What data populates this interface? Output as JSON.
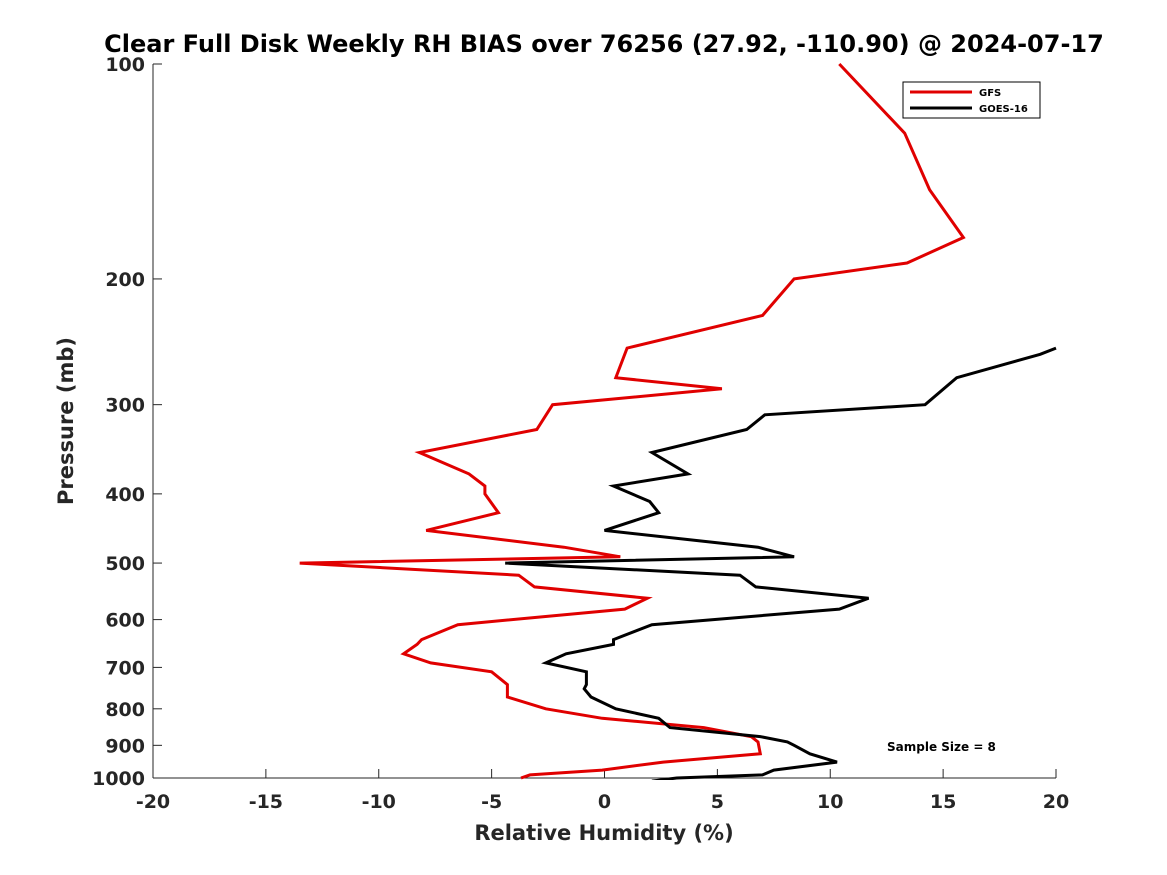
{
  "chart_data": {
    "type": "line",
    "title": "Clear Full Disk Weekly RH BIAS over 76256 (27.92, -110.90) @ 2024-07-17",
    "xlabel": "Relative Humidity (%)",
    "ylabel": "Pressure (mb)",
    "xlim": [
      -20,
      20
    ],
    "ylim": [
      100,
      1000
    ],
    "yscale": "log",
    "y_reversed": true,
    "xticks": [
      "-20",
      "-15",
      "-10",
      "-5",
      "0",
      "5",
      "10",
      "15",
      "20"
    ],
    "yticks": [
      "100",
      "200",
      "300",
      "400",
      "500",
      "600",
      "700",
      "800",
      "900",
      "1000"
    ],
    "legend_position": "top-right",
    "annotation": "Sample Size = 8",
    "series": [
      {
        "name": "GFS",
        "color": "#e00000",
        "points": [
          [
            10.4,
            100
          ],
          [
            13.3,
            125
          ],
          [
            14.4,
            150
          ],
          [
            15.9,
            175
          ],
          [
            13.4,
            190
          ],
          [
            8.4,
            200
          ],
          [
            7.0,
            225
          ],
          [
            1.0,
            250
          ],
          [
            0.5,
            275
          ],
          [
            5.2,
            285
          ],
          [
            -2.3,
            300
          ],
          [
            -3.0,
            325
          ],
          [
            -8.2,
            350
          ],
          [
            -6.0,
            375
          ],
          [
            -5.3,
            390
          ],
          [
            -5.3,
            400
          ],
          [
            -4.7,
            425
          ],
          [
            -7.9,
            450
          ],
          [
            -1.8,
            475
          ],
          [
            0.7,
            490
          ],
          [
            -13.5,
            500
          ],
          [
            -3.8,
            520
          ],
          [
            -3.1,
            540
          ],
          [
            1.9,
            560
          ],
          [
            0.9,
            580
          ],
          [
            -6.5,
            610
          ],
          [
            -8.1,
            640
          ],
          [
            -8.3,
            650
          ],
          [
            -8.9,
            670
          ],
          [
            -7.7,
            690
          ],
          [
            -5.0,
            710
          ],
          [
            -4.3,
            740
          ],
          [
            -4.3,
            750
          ],
          [
            -4.3,
            770
          ],
          [
            -2.6,
            800
          ],
          [
            -0.1,
            825
          ],
          [
            4.4,
            850
          ],
          [
            6.5,
            875
          ],
          [
            6.8,
            890
          ],
          [
            6.9,
            925
          ],
          [
            2.6,
            950
          ],
          [
            -0.1,
            975
          ],
          [
            -3.3,
            990
          ],
          [
            -3.7,
            1000
          ]
        ]
      },
      {
        "name": "GOES-16",
        "color": "#000000",
        "points": [
          [
            20.0,
            250
          ],
          [
            19.3,
            255
          ],
          [
            15.6,
            275
          ],
          [
            14.2,
            300
          ],
          [
            7.1,
            310
          ],
          [
            6.3,
            325
          ],
          [
            2.1,
            350
          ],
          [
            3.7,
            375
          ],
          [
            0.4,
            390
          ],
          [
            2.0,
            410
          ],
          [
            2.4,
            425
          ],
          [
            0.0,
            450
          ],
          [
            6.8,
            475
          ],
          [
            8.4,
            490
          ],
          [
            -4.4,
            500
          ],
          [
            6.0,
            520
          ],
          [
            6.7,
            540
          ],
          [
            11.7,
            560
          ],
          [
            10.4,
            580
          ],
          [
            2.1,
            610
          ],
          [
            0.4,
            640
          ],
          [
            0.4,
            650
          ],
          [
            -1.7,
            670
          ],
          [
            -2.6,
            690
          ],
          [
            -0.8,
            710
          ],
          [
            -0.8,
            740
          ],
          [
            -0.9,
            750
          ],
          [
            -0.6,
            770
          ],
          [
            0.5,
            800
          ],
          [
            2.4,
            825
          ],
          [
            2.9,
            850
          ],
          [
            6.9,
            875
          ],
          [
            8.1,
            890
          ],
          [
            8.4,
            900
          ],
          [
            9.1,
            925
          ],
          [
            10.3,
            950
          ],
          [
            7.5,
            975
          ],
          [
            7.0,
            990
          ],
          [
            3.2,
            1000
          ],
          [
            2.1,
            1010
          ]
        ]
      }
    ]
  }
}
